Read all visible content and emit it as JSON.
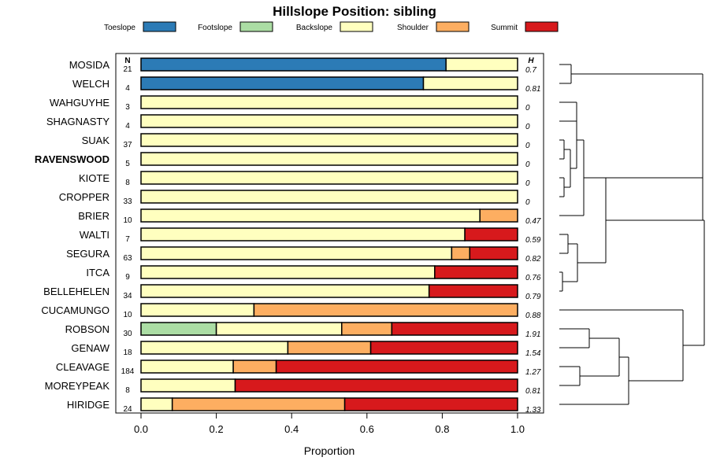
{
  "chart_data": {
    "type": "bar",
    "orientation": "horizontal",
    "stacked": true,
    "title": "Hillslope Position: sibling",
    "xlabel": "Proportion",
    "ylabel": "",
    "xlim": [
      0,
      1
    ],
    "xticks": [
      "0.0",
      "0.2",
      "0.4",
      "0.6",
      "0.8",
      "1.0"
    ],
    "legend_position": "top",
    "n_header": "N",
    "h_header": "H",
    "series": [
      {
        "name": "Toeslope",
        "color": "#2c7bb6"
      },
      {
        "name": "Footslope",
        "color": "#abdda4"
      },
      {
        "name": "Backslope",
        "color": "#ffffbf"
      },
      {
        "name": "Shoulder",
        "color": "#fdae61"
      },
      {
        "name": "Summit",
        "color": "#d7191c"
      }
    ],
    "rows": [
      {
        "name": "MOSIDA",
        "n": "21",
        "h": "0.7",
        "bold": false,
        "values": [
          0.81,
          0,
          0.19,
          0,
          0
        ]
      },
      {
        "name": "WELCH",
        "n": "4",
        "h": "0.81",
        "bold": false,
        "values": [
          0.75,
          0,
          0.25,
          0,
          0
        ]
      },
      {
        "name": "WAHGUYHE",
        "n": "3",
        "h": "0",
        "bold": false,
        "values": [
          0,
          0,
          1,
          0,
          0
        ]
      },
      {
        "name": "SHAGNASTY",
        "n": "4",
        "h": "0",
        "bold": false,
        "values": [
          0,
          0,
          1,
          0,
          0
        ]
      },
      {
        "name": "SUAK",
        "n": "37",
        "h": "0",
        "bold": false,
        "values": [
          0,
          0,
          1,
          0,
          0
        ]
      },
      {
        "name": "RAVENSWOOD",
        "n": "5",
        "h": "0",
        "bold": true,
        "values": [
          0,
          0,
          1,
          0,
          0
        ]
      },
      {
        "name": "KIOTE",
        "n": "8",
        "h": "0",
        "bold": false,
        "values": [
          0,
          0,
          1,
          0,
          0
        ]
      },
      {
        "name": "CROPPER",
        "n": "33",
        "h": "0",
        "bold": false,
        "values": [
          0,
          0,
          1,
          0,
          0
        ]
      },
      {
        "name": "BRIER",
        "n": "10",
        "h": "0.47",
        "bold": false,
        "values": [
          0,
          0,
          0.9,
          0.1,
          0
        ]
      },
      {
        "name": "WALTI",
        "n": "7",
        "h": "0.59",
        "bold": false,
        "values": [
          0,
          0,
          0.86,
          0,
          0.14
        ]
      },
      {
        "name": "SEGURA",
        "n": "63",
        "h": "0.82",
        "bold": false,
        "values": [
          0,
          0,
          0.825,
          0.048,
          0.127
        ]
      },
      {
        "name": "ITCA",
        "n": "9",
        "h": "0.76",
        "bold": false,
        "values": [
          0,
          0,
          0.78,
          0,
          0.22
        ]
      },
      {
        "name": "BELLEHELEN",
        "n": "34",
        "h": "0.79",
        "bold": false,
        "values": [
          0,
          0,
          0.765,
          0,
          0.235
        ]
      },
      {
        "name": "CUCAMUNGO",
        "n": "10",
        "h": "0.88",
        "bold": false,
        "values": [
          0,
          0,
          0.3,
          0.7,
          0
        ]
      },
      {
        "name": "ROBSON",
        "n": "30",
        "h": "1.91",
        "bold": false,
        "values": [
          0,
          0.2,
          0.333,
          0.133,
          0.334
        ]
      },
      {
        "name": "GENAW",
        "n": "18",
        "h": "1.54",
        "bold": false,
        "values": [
          0,
          0,
          0.39,
          0.22,
          0.39
        ]
      },
      {
        "name": "CLEAVAGE",
        "n": "184",
        "h": "1.27",
        "bold": false,
        "values": [
          0,
          0,
          0.245,
          0.114,
          0.641
        ]
      },
      {
        "name": "MOREYPEAK",
        "n": "8",
        "h": "0.81",
        "bold": false,
        "values": [
          0,
          0,
          0.25,
          0,
          0.75
        ]
      },
      {
        "name": "HIRIDGE",
        "n": "24",
        "h": "1.33",
        "bold": false,
        "values": [
          0,
          0,
          0.083,
          0.458,
          0.459
        ]
      }
    ]
  }
}
